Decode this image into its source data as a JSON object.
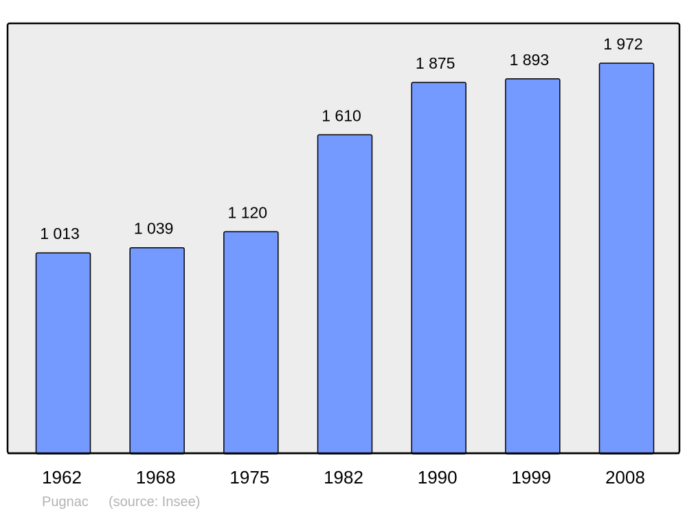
{
  "chart_data": {
    "type": "bar",
    "categories": [
      "1962",
      "1968",
      "1975",
      "1982",
      "1990",
      "1999",
      "2008"
    ],
    "values": [
      1013,
      1039,
      1120,
      1610,
      1875,
      1893,
      1972
    ],
    "value_labels": [
      "1 013",
      "1 039",
      "1 120",
      "1 610",
      "1 875",
      "1 893",
      "1 972"
    ],
    "title": "",
    "xlabel": "",
    "ylabel": "",
    "ylim": [
      0,
      2170
    ],
    "grid": false,
    "colors": {
      "bar": "#7499ff",
      "plot_background": "#ededed",
      "outline": "#000000"
    }
  },
  "footer": {
    "place": "Pugnac",
    "source": "(source: Insee)"
  }
}
